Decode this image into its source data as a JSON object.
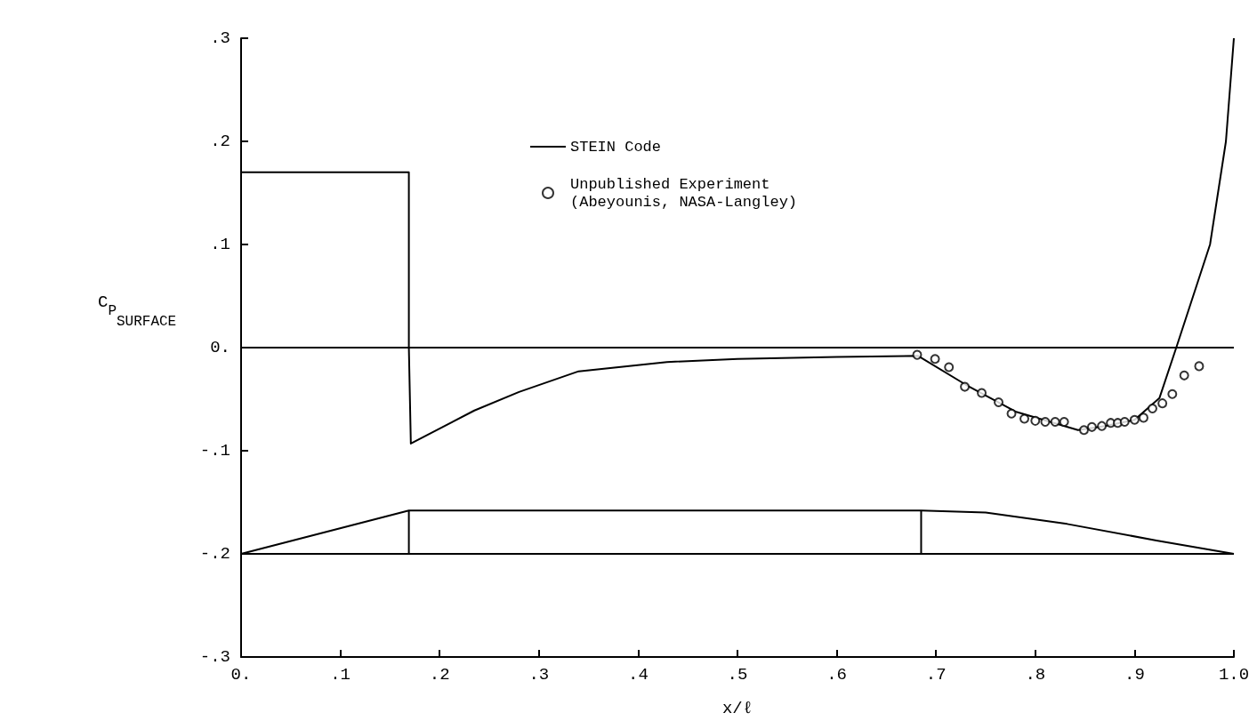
{
  "chart_data": {
    "type": "line",
    "xlabel": "x/ℓ",
    "ylabel": "C$_{P}$$_{SURFACE}$",
    "xlim": [
      0,
      1.0
    ],
    "ylim": [
      -0.3,
      0.3
    ],
    "xticks": [
      {
        "value": 0,
        "label": "0."
      },
      {
        "value": 0.1,
        "label": ".1"
      },
      {
        "value": 0.2,
        "label": ".2"
      },
      {
        "value": 0.3,
        "label": ".3"
      },
      {
        "value": 0.4,
        "label": ".4"
      },
      {
        "value": 0.5,
        "label": ".5"
      },
      {
        "value": 0.6,
        "label": ".6"
      },
      {
        "value": 0.7,
        "label": ".7"
      },
      {
        "value": 0.8,
        "label": ".8"
      },
      {
        "value": 0.9,
        "label": ".9"
      },
      {
        "value": 1.0,
        "label": "1.0"
      }
    ],
    "yticks": [
      {
        "value": -0.3,
        "label": "-.3"
      },
      {
        "value": -0.2,
        "label": "-.2"
      },
      {
        "value": -0.1,
        "label": "-.1"
      },
      {
        "value": 0,
        "label": "0."
      },
      {
        "value": 0.1,
        "label": ".1"
      },
      {
        "value": 0.2,
        "label": ".2"
      },
      {
        "value": 0.3,
        "label": ".3"
      }
    ],
    "grid": false,
    "legend": "top",
    "ref_lines": [
      {
        "axis": "y",
        "value": 0,
        "color": "#000000"
      }
    ],
    "series": [
      {
        "name": "STEIN Code",
        "color": "#000000",
        "x": [
          0,
          0.169,
          0.169,
          0.171,
          0.235,
          0.28,
          0.34,
          0.429,
          0.5,
          0.6,
          0.682,
          0.73,
          0.78,
          0.843,
          0.87,
          0.9,
          0.925,
          0.942,
          0.976,
          0.992,
          1.0
        ],
        "values": [
          0.17,
          0.17,
          0,
          -0.093,
          -0.061,
          -0.043,
          -0.023,
          -0.014,
          -0.011,
          -0.009,
          -0.008,
          -0.036,
          -0.062,
          -0.08,
          -0.076,
          -0.07,
          -0.049,
          0,
          0.1,
          0.2,
          0.3
        ]
      },
      {
        "name": "Unpublished Experiment\n(Abeyounis, NASA-Langley)",
        "type": "scatter",
        "marker": "circle",
        "color": "#000000",
        "x": [
          0.681,
          0.699,
          0.713,
          0.729,
          0.746,
          0.763,
          0.776,
          0.789,
          0.8,
          0.81,
          0.82,
          0.829,
          0.849,
          0.857,
          0.867,
          0.876,
          0.883,
          0.89,
          0.9,
          0.909,
          0.918,
          0.928,
          0.938,
          0.95,
          0.965
        ],
        "values": [
          -0.007,
          -0.011,
          -0.019,
          -0.038,
          -0.044,
          -0.053,
          -0.064,
          -0.069,
          -0.071,
          -0.072,
          -0.072,
          -0.072,
          -0.08,
          -0.077,
          -0.076,
          -0.073,
          -0.073,
          -0.072,
          -0.07,
          -0.068,
          -0.059,
          -0.054,
          -0.045,
          -0.027,
          -0.018
        ]
      },
      {
        "color": "#000000",
        "x": [
          0,
          0.169,
          0.685,
          0.75,
          0.832,
          0.922,
          1.0
        ],
        "values": [
          -0.2,
          -0.158,
          -0.158,
          -0.16,
          -0.171,
          -0.187,
          -0.2
        ]
      },
      {
        "color": "#000000",
        "x": [
          0,
          1.0
        ],
        "values": [
          -0.2,
          -0.2
        ]
      },
      {
        "color": "#000000",
        "x": [
          0.169,
          0.169
        ],
        "values": [
          -0.2,
          -0.158
        ]
      },
      {
        "color": "#000000",
        "x": [
          0.685,
          0.685
        ],
        "values": [
          -0.2,
          -0.158
        ]
      }
    ]
  }
}
